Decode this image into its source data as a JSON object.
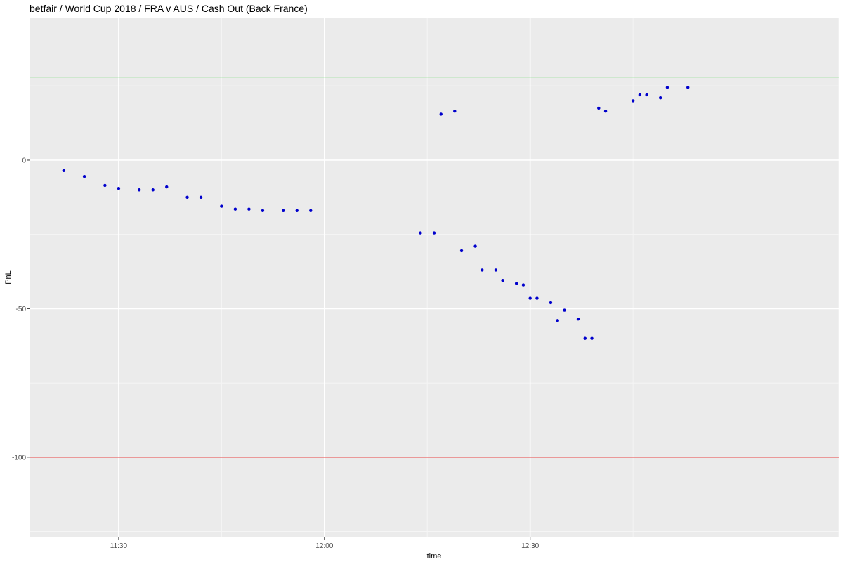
{
  "chart_data": {
    "type": "scatter",
    "title": "betfair / World Cup 2018 / FRA v AUS / Cash Out (Back France)",
    "xlabel": "time",
    "ylabel": "PnL",
    "x_ticks": [
      "11:30",
      "12:00",
      "12:30"
    ],
    "y_ticks": [
      -100,
      -50,
      0
    ],
    "xlim": [
      "11:17",
      "13:15"
    ],
    "ylim": [
      -127,
      48
    ],
    "grid": true,
    "point_color": "#0000cc",
    "reference_lines": [
      {
        "y": 28,
        "color": "#00cc00"
      },
      {
        "y": -100,
        "color": "#dd0000"
      }
    ],
    "points": [
      {
        "x": "11:22",
        "y": -3.5
      },
      {
        "x": "11:25",
        "y": -5.5
      },
      {
        "x": "11:28",
        "y": -8.5
      },
      {
        "x": "11:30",
        "y": -9.5
      },
      {
        "x": "11:33",
        "y": -10
      },
      {
        "x": "11:35",
        "y": -10
      },
      {
        "x": "11:37",
        "y": -9
      },
      {
        "x": "11:40",
        "y": -12.5
      },
      {
        "x": "11:42",
        "y": -12.5
      },
      {
        "x": "11:45",
        "y": -15.5
      },
      {
        "x": "11:47",
        "y": -16.5
      },
      {
        "x": "11:49",
        "y": -16.5
      },
      {
        "x": "11:51",
        "y": -17
      },
      {
        "x": "11:54",
        "y": -17
      },
      {
        "x": "11:56",
        "y": -17
      },
      {
        "x": "11:58",
        "y": -17
      },
      {
        "x": "12:14",
        "y": -24.5
      },
      {
        "x": "12:16",
        "y": -24.5
      },
      {
        "x": "12:17",
        "y": 15.5
      },
      {
        "x": "12:19",
        "y": 16.5
      },
      {
        "x": "12:20",
        "y": -30.5
      },
      {
        "x": "12:22",
        "y": -29
      },
      {
        "x": "12:23",
        "y": -37
      },
      {
        "x": "12:25",
        "y": -37
      },
      {
        "x": "12:26",
        "y": -40.5
      },
      {
        "x": "12:28",
        "y": -41.5
      },
      {
        "x": "12:29",
        "y": -42
      },
      {
        "x": "12:30",
        "y": -46.5
      },
      {
        "x": "12:31",
        "y": -46.5
      },
      {
        "x": "12:33",
        "y": -48
      },
      {
        "x": "12:34",
        "y": -54
      },
      {
        "x": "12:35",
        "y": -50.5
      },
      {
        "x": "12:37",
        "y": -53.5
      },
      {
        "x": "12:38",
        "y": -60
      },
      {
        "x": "12:39",
        "y": -60
      },
      {
        "x": "12:40",
        "y": 17.5
      },
      {
        "x": "12:41",
        "y": 16.5
      },
      {
        "x": "12:45",
        "y": 20
      },
      {
        "x": "12:46",
        "y": 22
      },
      {
        "x": "12:47",
        "y": 22
      },
      {
        "x": "12:49",
        "y": 21
      },
      {
        "x": "12:50",
        "y": 24.5
      },
      {
        "x": "12:53",
        "y": 24.5
      }
    ]
  }
}
